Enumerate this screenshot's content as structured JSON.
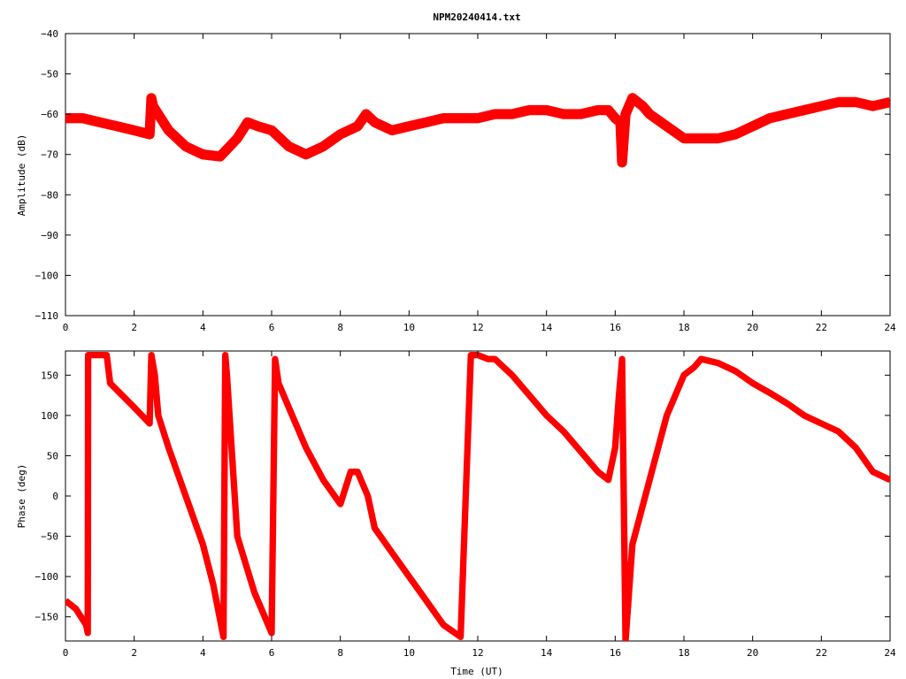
{
  "title": "NPM20240414.txt",
  "colors": {
    "series": "#ff0000",
    "axis": "#000000",
    "background": "#ffffff"
  },
  "chart_data": [
    {
      "type": "line",
      "title": "NPM20240414.txt",
      "xlabel": "",
      "ylabel": "Amplitude (dB)",
      "xlim": [
        0,
        24
      ],
      "ylim": [
        -110,
        -40
      ],
      "xticks": [
        0,
        2,
        4,
        6,
        8,
        10,
        12,
        14,
        16,
        18,
        20,
        22,
        24
      ],
      "yticks": [
        -40,
        -50,
        -60,
        -70,
        -80,
        -90,
        -100,
        -110
      ],
      "grid": false,
      "series": [
        {
          "x": [
            0,
            0.5,
            1,
            1.5,
            2,
            2.45,
            2.5,
            2.55,
            3,
            3.5,
            4,
            4.5,
            5,
            5.3,
            5.6,
            6,
            6.5,
            7,
            7.5,
            8,
            8.5,
            8.75,
            9,
            9.5,
            10,
            10.5,
            11,
            11.5,
            12,
            12.5,
            13,
            13.5,
            14,
            14.5,
            15,
            15.5,
            15.8,
            16,
            16.15,
            16.2,
            16.3,
            16.5,
            16.8,
            17,
            17.5,
            18,
            18.5,
            19,
            19.5,
            20,
            20.5,
            21,
            21.5,
            22,
            22.5,
            23,
            23.5,
            24
          ],
          "y": [
            -61,
            -61,
            -62,
            -63,
            -64,
            -65,
            -56,
            -58,
            -64,
            -68,
            -70,
            -70.5,
            -66,
            -62,
            -63,
            -64,
            -68,
            -70,
            -68,
            -65,
            -63,
            -60,
            -62,
            -64,
            -63,
            -62,
            -61,
            -61,
            -61,
            -60,
            -60,
            -59,
            -59,
            -60,
            -60,
            -59,
            -59,
            -61,
            -62,
            -72,
            -60,
            -56,
            -58,
            -60,
            -63,
            -66,
            -66,
            -66,
            -65,
            -63,
            -61,
            -60,
            -59,
            -58,
            -57,
            -57,
            -58,
            -57
          ],
          "band": 2.5
        }
      ]
    },
    {
      "type": "line",
      "title": "",
      "xlabel": "Time (UT)",
      "ylabel": "Phase (deg)",
      "xlim": [
        0,
        24
      ],
      "ylim": [
        -180,
        180
      ],
      "xticks": [
        0,
        2,
        4,
        6,
        8,
        10,
        12,
        14,
        16,
        18,
        20,
        22,
        24
      ],
      "yticks": [
        150,
        100,
        50,
        0,
        -50,
        -100,
        -150
      ],
      "grid": false,
      "series": [
        {
          "x": [
            0,
            0.3,
            0.6,
            0.65,
            0.66,
            1.2,
            1.3,
            2,
            2.45,
            2.5,
            2.6,
            2.7,
            3,
            3.5,
            4,
            4.3,
            4.6,
            4.65,
            4.7,
            5,
            5.5,
            6,
            6.1,
            6.2,
            6.5,
            7,
            7.5,
            8,
            8.3,
            8.5,
            8.8,
            9,
            9.5,
            10,
            10.5,
            11,
            11.5,
            11.8,
            12,
            12.3,
            12.5,
            13,
            13.5,
            14,
            14.5,
            15,
            15.5,
            15.8,
            16,
            16.1,
            16.2,
            16.3,
            16.4,
            16.45,
            16.5,
            17,
            17.5,
            18,
            18.3,
            18.5,
            19,
            19.5,
            20,
            20.5,
            21,
            21.5,
            22,
            22.5,
            23,
            23.5,
            24
          ],
          "y": [
            -130,
            -140,
            -160,
            -170,
            175,
            175,
            140,
            110,
            90,
            175,
            150,
            100,
            60,
            0,
            -60,
            -110,
            -175,
            175,
            150,
            -50,
            -120,
            -170,
            170,
            140,
            110,
            60,
            20,
            -10,
            30,
            30,
            0,
            -40,
            -70,
            -100,
            -130,
            -160,
            -175,
            175,
            175,
            170,
            170,
            150,
            125,
            100,
            80,
            55,
            30,
            20,
            60,
            120,
            170,
            -180,
            -120,
            -90,
            -60,
            20,
            100,
            150,
            160,
            170,
            165,
            155,
            140,
            128,
            115,
            100,
            90,
            80,
            60,
            30,
            20
          ],
          "band": 8
        }
      ]
    }
  ]
}
